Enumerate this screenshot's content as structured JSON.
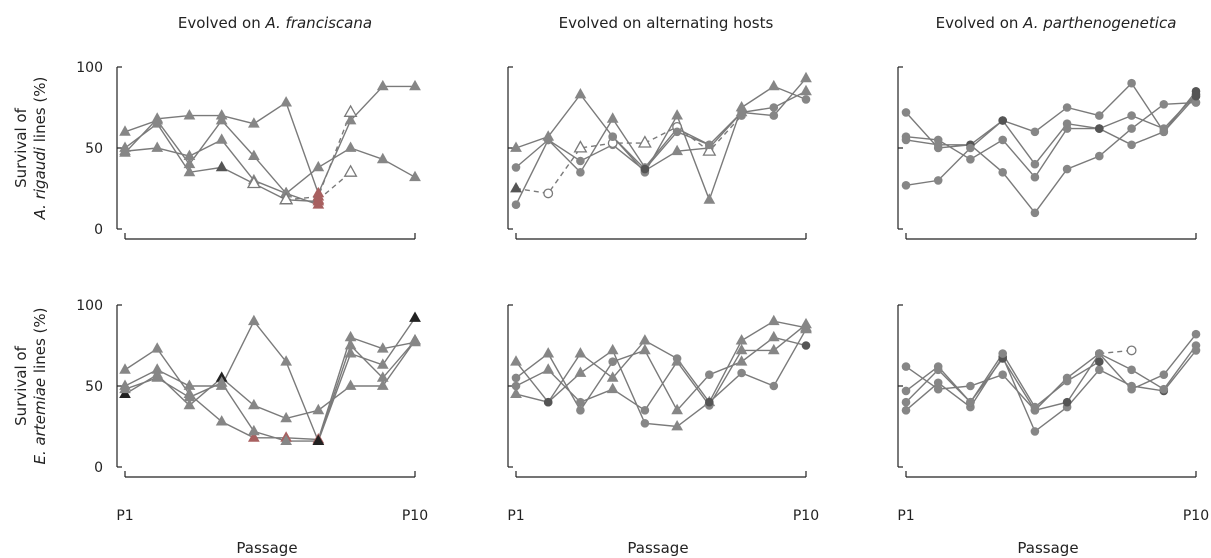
{
  "columns": [
    {
      "title_pre": "Evolved on ",
      "title_em": "A. franciscana",
      "title_post": ""
    },
    {
      "title_pre": "Evolved on alternating hosts",
      "title_em": "",
      "title_post": ""
    },
    {
      "title_pre": "Evolved on ",
      "title_em": "A. parthenogenetica",
      "title_post": ""
    }
  ],
  "rows": [
    {
      "label_line1": "Survival of",
      "label_em": "A. rigaudi",
      "label_post": " lines (%)"
    },
    {
      "label_line1": "Survival of",
      "label_em": "E. artemiae",
      "label_post": " lines (%)"
    }
  ],
  "xlabel": "Passage",
  "x_tick_labels": [
    "P1",
    "P10"
  ],
  "y_ticks": [
    0,
    50,
    100
  ],
  "colors": {
    "line": "#7a7a7a",
    "marker": "#868686",
    "dark": "#222222",
    "red": "#a86060",
    "axis": "#222222"
  },
  "chart_data": [
    {
      "panel": "r0c0",
      "type": "line",
      "marker": "triangle",
      "xlim": [
        1,
        10
      ],
      "ylim": [
        0,
        100
      ],
      "series": [
        {
          "x": [
            1,
            2,
            3,
            4,
            5,
            6,
            7
          ],
          "y": [
            60,
            67,
            40,
            67,
            45,
            22,
            15
          ],
          "styles": [
            "g",
            "g",
            "g",
            "g",
            "g",
            "k",
            "r"
          ]
        },
        {
          "x": [
            1,
            2,
            3,
            4,
            5,
            6,
            7,
            8,
            9,
            10
          ],
          "y": [
            48,
            50,
            45,
            55,
            30,
            22,
            38,
            50,
            43,
            32
          ]
        },
        {
          "x": [
            1,
            2,
            3,
            4,
            5,
            6,
            7,
            8,
            9,
            10
          ],
          "y": [
            47,
            68,
            70,
            70,
            65,
            78,
            22,
            67,
            88,
            88
          ],
          "styles": [
            "g",
            "g",
            "g",
            "g",
            "g",
            "g",
            "r",
            "g",
            "g",
            "g"
          ]
        },
        {
          "x": [
            1,
            2,
            3,
            4,
            5,
            6,
            7
          ],
          "y": [
            50,
            65,
            35,
            38,
            28,
            18,
            17
          ],
          "styles": [
            "g",
            "g",
            "g",
            "d",
            "o",
            "o",
            "r"
          ]
        },
        {
          "x": [
            6,
            7,
            8
          ],
          "y": [
            18,
            20,
            72
          ],
          "dashed": true,
          "styles": [
            "o",
            "r",
            "o"
          ]
        },
        {
          "x": [
            7,
            8
          ],
          "y": [
            18,
            35
          ],
          "dashed": true,
          "styles": [
            "r",
            "o"
          ]
        }
      ]
    },
    {
      "panel": "r0c1",
      "type": "line",
      "marker": "mixed",
      "xlim": [
        1,
        10
      ],
      "ylim": [
        0,
        100
      ],
      "series": [
        {
          "x": [
            1,
            2,
            3,
            4,
            5,
            6,
            7,
            8,
            9,
            10
          ],
          "y": [
            50,
            57,
            83,
            57,
            35,
            70,
            18,
            75,
            88,
            80
          ],
          "markers": [
            "t",
            "t",
            "t",
            "c",
            "c",
            "t",
            "t",
            "t",
            "t",
            "c"
          ]
        },
        {
          "x": [
            1,
            2,
            3,
            4,
            5,
            6,
            7,
            8,
            9,
            10
          ],
          "y": [
            38,
            55,
            35,
            68,
            38,
            62,
            52,
            72,
            70,
            93
          ],
          "markers": [
            "c",
            "c",
            "c",
            "t",
            "c",
            "c",
            "c",
            "t",
            "c",
            "t"
          ]
        },
        {
          "x": [
            1,
            2,
            3,
            4,
            5,
            6,
            7,
            8,
            9,
            10
          ],
          "y": [
            15,
            55,
            42,
            52,
            36,
            48,
            50,
            72,
            75,
            85
          ],
          "markers": [
            "c",
            "c",
            "c",
            "c",
            "c",
            "t",
            "c",
            "c",
            "c",
            "t"
          ]
        },
        {
          "x": [
            1,
            2,
            3,
            4,
            5,
            6,
            7,
            8
          ],
          "y": [
            25,
            22,
            50,
            53,
            53,
            63,
            48,
            70
          ],
          "dashed": true,
          "markers": [
            "t",
            "c",
            "t",
            "c",
            "t",
            "c",
            "t",
            "c"
          ],
          "styles": [
            "d",
            "o",
            "o",
            "o",
            "o",
            "o",
            "o",
            "g"
          ]
        },
        {
          "x": [
            4,
            5,
            6,
            7
          ],
          "y": [
            57,
            37,
            60,
            52
          ],
          "markers": [
            "c",
            "c",
            "c",
            "c"
          ],
          "styles": [
            "g",
            "d",
            "g",
            "g"
          ]
        }
      ]
    },
    {
      "panel": "r0c2",
      "type": "line",
      "marker": "circle",
      "xlim": [
        1,
        10
      ],
      "ylim": [
        0,
        100
      ],
      "series": [
        {
          "x": [
            1,
            2,
            3,
            4,
            5,
            6,
            7,
            8,
            9,
            10
          ],
          "y": [
            72,
            50,
            52,
            35,
            10,
            37,
            45,
            62,
            77,
            78
          ]
        },
        {
          "x": [
            1,
            2,
            3,
            4,
            5,
            6,
            7,
            8,
            9,
            10
          ],
          "y": [
            57,
            55,
            43,
            55,
            32,
            62,
            62,
            52,
            60,
            82
          ],
          "styles": [
            "g",
            "g",
            "g",
            "g",
            "g",
            "g",
            "d",
            "g",
            "d",
            "d"
          ]
        },
        {
          "x": [
            1,
            2,
            3,
            4,
            5,
            6,
            7,
            8,
            9,
            10
          ],
          "y": [
            55,
            52,
            52,
            67,
            60,
            75,
            70,
            90,
            60,
            85
          ],
          "styles": [
            "g",
            "g",
            "d",
            "d",
            "g",
            "g",
            "g",
            "g",
            "g",
            "d"
          ]
        },
        {
          "x": [
            1,
            2,
            3,
            4,
            5,
            6,
            7,
            8,
            9,
            10
          ],
          "y": [
            27,
            30,
            50,
            67,
            40,
            65,
            62,
            70,
            62,
            83
          ],
          "styles": [
            "g",
            "g",
            "g",
            "d",
            "g",
            "g",
            "d",
            "g",
            "g",
            "d"
          ]
        }
      ]
    },
    {
      "panel": "r1c0",
      "type": "line",
      "marker": "triangle",
      "xlim": [
        1,
        10
      ],
      "ylim": [
        0,
        100
      ],
      "series": [
        {
          "x": [
            1,
            2,
            3,
            4,
            5,
            6,
            7,
            8,
            9,
            10
          ],
          "y": [
            60,
            73,
            45,
            28,
            18,
            18,
            17,
            80,
            73,
            77
          ],
          "styles": [
            "g",
            "g",
            "g",
            "g",
            "r",
            "r",
            "r",
            "g",
            "g",
            "g"
          ]
        },
        {
          "x": [
            1,
            2,
            3,
            4,
            5,
            6,
            7,
            8,
            9,
            10
          ],
          "y": [
            50,
            60,
            50,
            50,
            90,
            65,
            16,
            70,
            63,
            92
          ],
          "styles": [
            "g",
            "g",
            "g",
            "g",
            "g",
            "g",
            "r",
            "g",
            "g",
            "k"
          ]
        },
        {
          "x": [
            1,
            2,
            3,
            4,
            5,
            6,
            7,
            8,
            9,
            10
          ],
          "y": [
            45,
            57,
            38,
            55,
            38,
            30,
            35,
            50,
            50,
            78
          ],
          "styles": [
            "k",
            "g",
            "g",
            "k",
            "g",
            "g",
            "g",
            "g",
            "g",
            "k"
          ]
        },
        {
          "x": [
            1,
            2,
            3,
            4,
            5,
            6,
            7,
            8,
            9,
            10
          ],
          "y": [
            48,
            55,
            43,
            52,
            22,
            16,
            16,
            75,
            55,
            78
          ],
          "styles": [
            "g",
            "g",
            "g",
            "g",
            "g",
            "g",
            "k",
            "g",
            "g",
            "g"
          ]
        }
      ]
    },
    {
      "panel": "r1c1",
      "type": "line",
      "marker": "mixed",
      "xlim": [
        1,
        10
      ],
      "ylim": [
        0,
        100
      ],
      "series": [
        {
          "x": [
            1,
            2,
            3,
            4,
            5,
            6,
            7,
            8,
            9,
            10
          ],
          "y": [
            65,
            40,
            70,
            55,
            78,
            67,
            40,
            78,
            90,
            86
          ],
          "markers": [
            "t",
            "c",
            "t",
            "t",
            "t",
            "c",
            "t",
            "t",
            "t",
            "t"
          ]
        },
        {
          "x": [
            1,
            2,
            3,
            4,
            5,
            6,
            7,
            8,
            9,
            10
          ],
          "y": [
            55,
            70,
            35,
            65,
            72,
            35,
            57,
            65,
            80,
            75
          ],
          "markers": [
            "c",
            "t",
            "c",
            "c",
            "t",
            "t",
            "c",
            "t",
            "t",
            "c"
          ],
          "styles": [
            "g",
            "g",
            "g",
            "g",
            "g",
            "g",
            "g",
            "g",
            "g",
            "d"
          ]
        },
        {
          "x": [
            1,
            2,
            3,
            4,
            5,
            6,
            7,
            8,
            9,
            10
          ],
          "y": [
            50,
            60,
            40,
            48,
            35,
            65,
            38,
            72,
            72,
            88
          ],
          "markers": [
            "c",
            "t",
            "c",
            "t",
            "c",
            "t",
            "c",
            "t",
            "t",
            "t"
          ]
        },
        {
          "x": [
            1,
            2,
            3,
            4,
            5,
            6,
            7,
            8,
            9,
            10
          ],
          "y": [
            45,
            40,
            58,
            72,
            27,
            25,
            40,
            58,
            50,
            85
          ],
          "markers": [
            "t",
            "c",
            "t",
            "t",
            "c",
            "t",
            "c",
            "c",
            "c",
            "t"
          ],
          "styles": [
            "g",
            "d",
            "g",
            "g",
            "g",
            "g",
            "d",
            "g",
            "g",
            "g"
          ]
        }
      ]
    },
    {
      "panel": "r1c2",
      "type": "line",
      "marker": "circle",
      "xlim": [
        1,
        10
      ],
      "ylim": [
        0,
        100
      ],
      "series": [
        {
          "x": [
            1,
            2,
            3,
            4,
            5,
            6,
            7,
            8,
            9,
            10
          ],
          "y": [
            62,
            48,
            50,
            57,
            35,
            55,
            70,
            48,
            57,
            82
          ]
        },
        {
          "x": [
            1,
            2,
            3,
            4,
            5,
            6,
            7,
            8,
            9,
            10
          ],
          "y": [
            35,
            52,
            37,
            68,
            22,
            37,
            60,
            50,
            47,
            72
          ],
          "styles": [
            "g",
            "g",
            "g",
            "d",
            "g",
            "g",
            "g",
            "g",
            "d",
            "g"
          ]
        },
        {
          "x": [
            1,
            2,
            3,
            4,
            5,
            6,
            7,
            8,
            9,
            10
          ],
          "y": [
            47,
            62,
            40,
            67,
            35,
            40,
            70,
            60,
            48,
            75
          ],
          "styles": [
            "g",
            "g",
            "d",
            "d",
            "g",
            "d",
            "g",
            "g",
            "g",
            "g"
          ]
        },
        {
          "x": [
            1,
            2,
            3,
            4,
            5,
            6,
            7
          ],
          "y": [
            40,
            60,
            40,
            70,
            37,
            53,
            65
          ],
          "styles": [
            "g",
            "g",
            "g",
            "g",
            "g",
            "g",
            "d"
          ]
        },
        {
          "x": [
            7,
            8
          ],
          "y": [
            70,
            72
          ],
          "dashed": true,
          "styles": [
            "g",
            "o"
          ]
        }
      ]
    }
  ]
}
